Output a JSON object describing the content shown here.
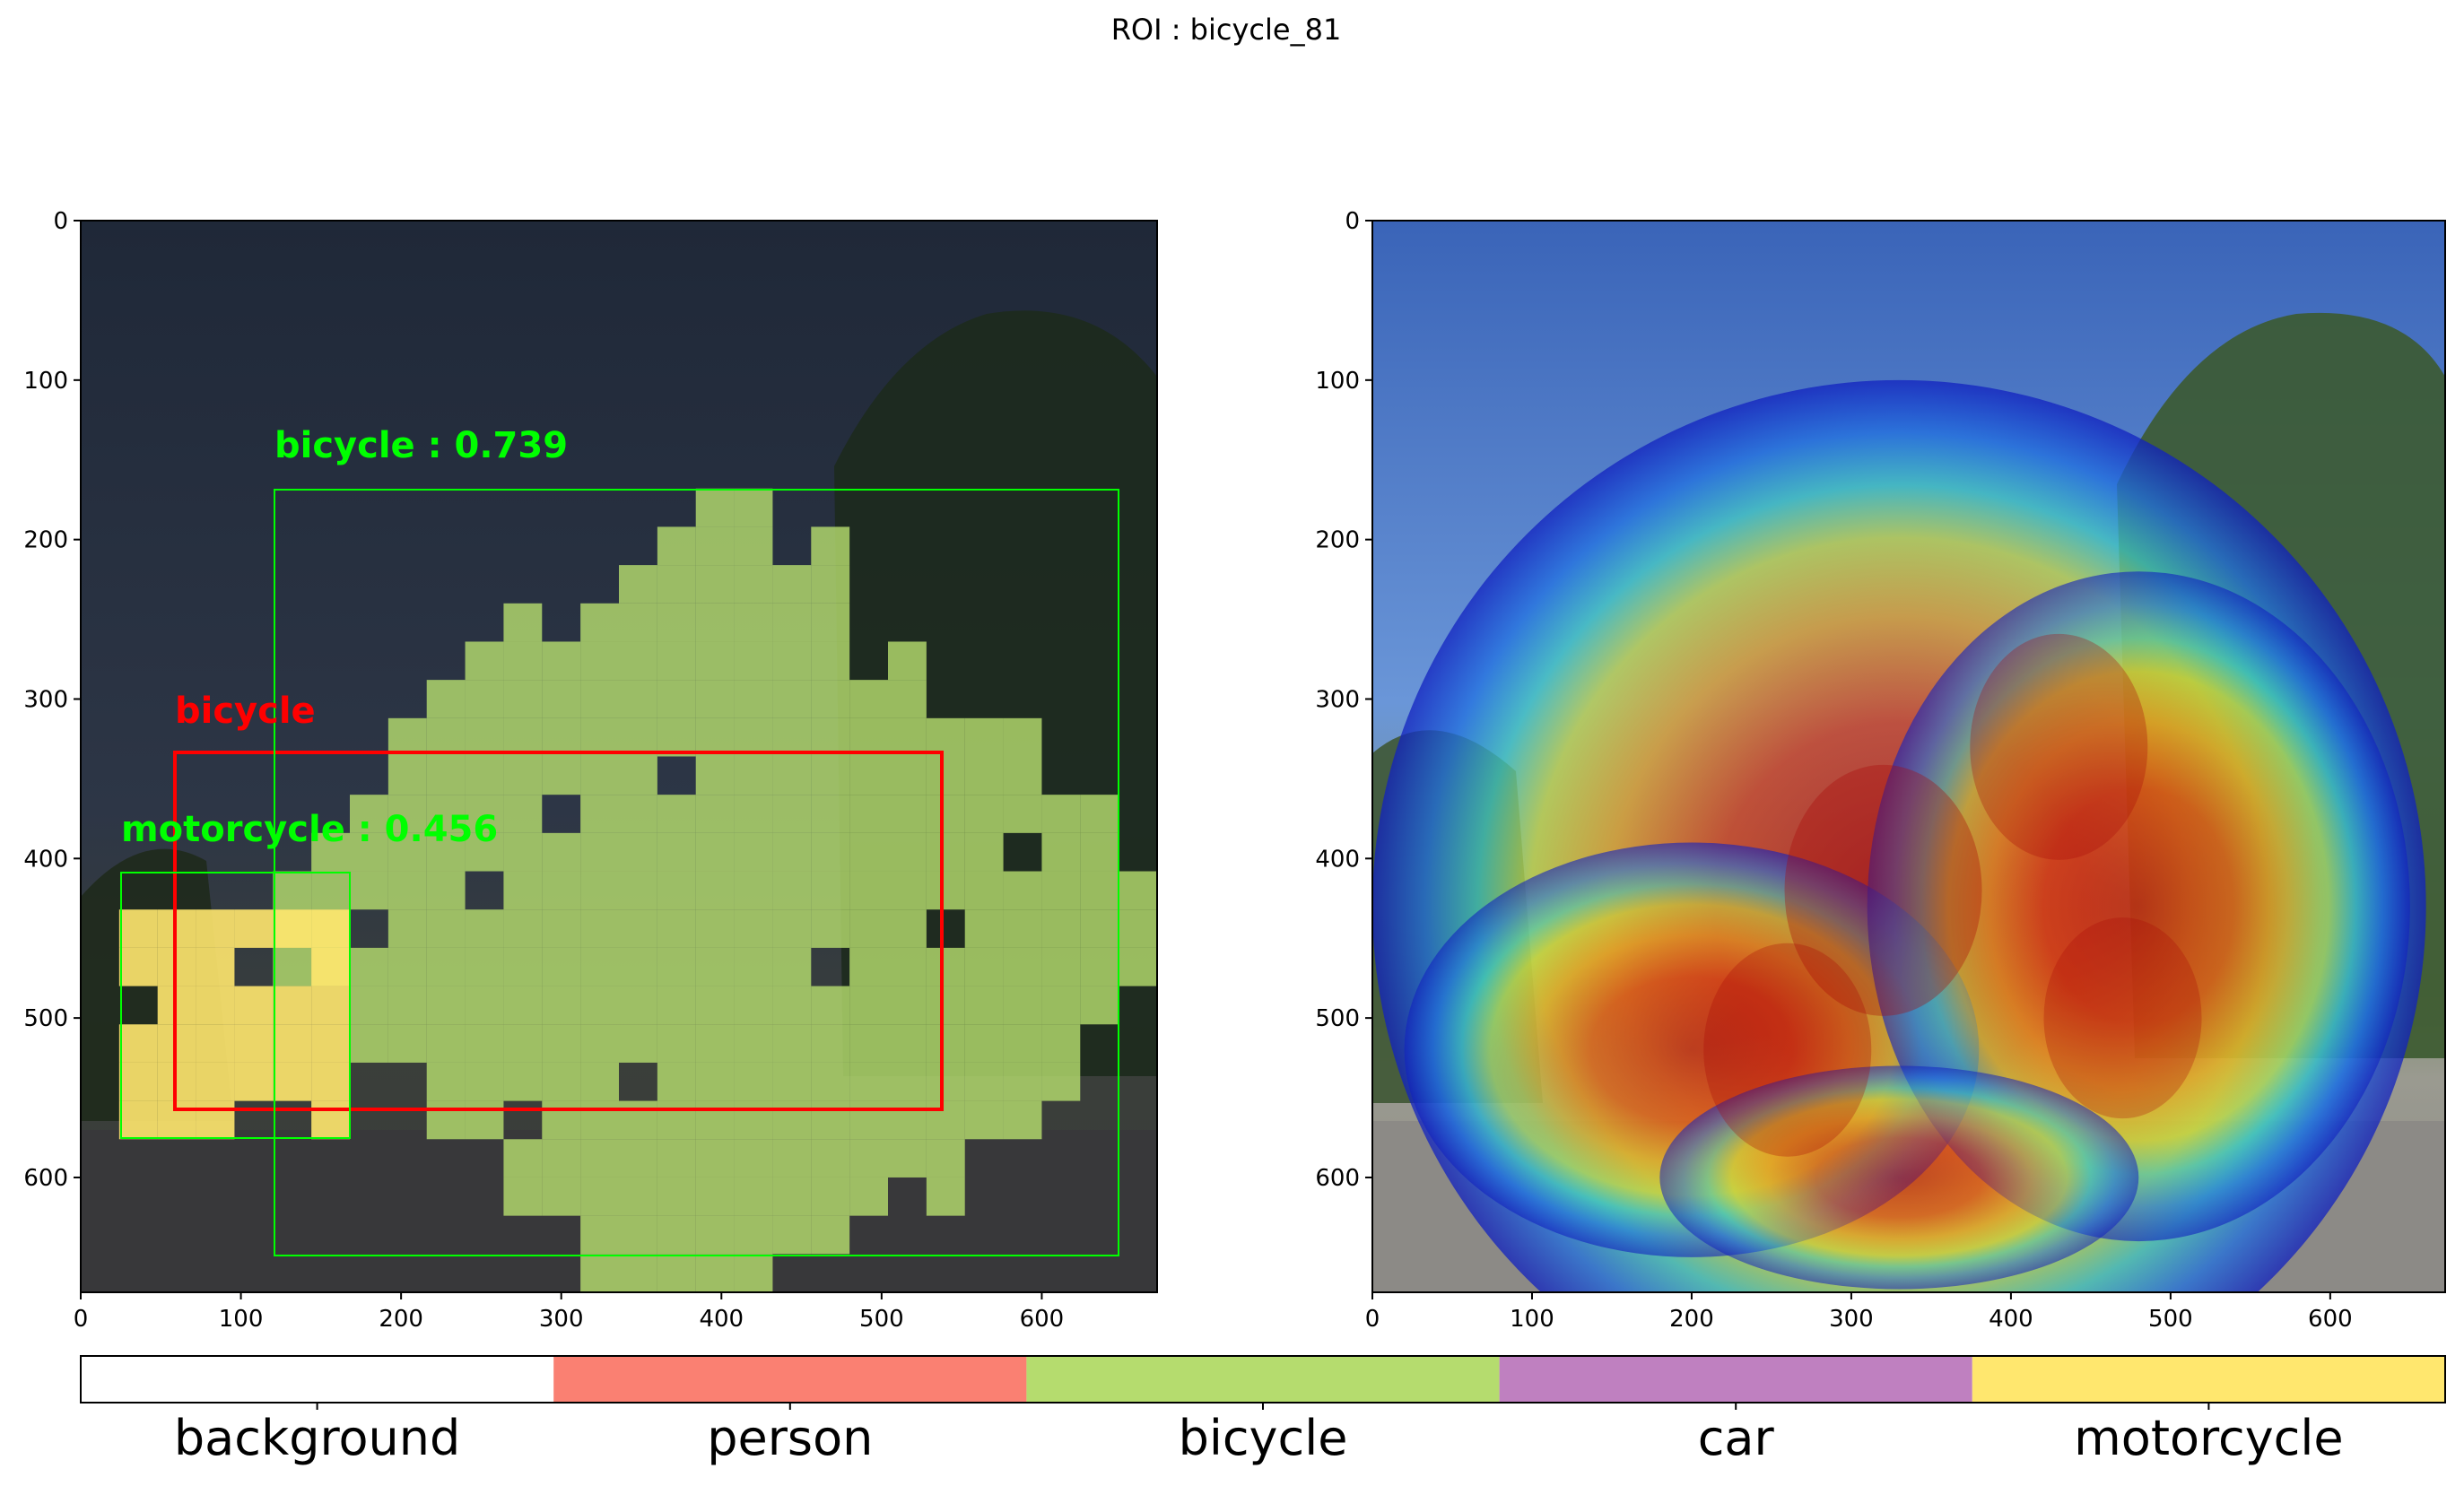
{
  "figure_title": "ROI : bicycle_81",
  "colors": {
    "background_class": "#ffffff",
    "person_class": "#fa8072",
    "bicycle_class": "#b5dc6e",
    "car_class": "#bf80c0",
    "motorcycle_class": "#ffe76e",
    "roi_box": "#ff0000",
    "detection_box": "#00ff00",
    "sky_dark": "#2a3344",
    "ground_dark": "#3a3a3c"
  },
  "chart_data": [
    {
      "type": "image",
      "panel": "left",
      "description_type": "segmentation-overlay",
      "xlim": [
        0,
        672
      ],
      "ylim": [
        672,
        0
      ],
      "x_ticks": [
        0,
        100,
        200,
        300,
        400,
        500,
        600
      ],
      "y_ticks": [
        0,
        100,
        200,
        300,
        400,
        500,
        600
      ],
      "segments": [
        {
          "class": "bicycle",
          "x": [
            120,
            660
          ],
          "y": [
            168,
            672
          ]
        },
        {
          "class": "motorcycle",
          "x": [
            24,
            168
          ],
          "y": [
            408,
            576
          ]
        }
      ],
      "roi_box": {
        "label": "bicycle",
        "x0": 58,
        "y0": 334,
        "x1": 536,
        "y1": 557
      },
      "detections": [
        {
          "label": "bicycle : 0.739",
          "score": 0.739,
          "x0": 120,
          "y0": 168,
          "x1": 647,
          "y1": 647
        },
        {
          "label": "motorcycle : 0.456",
          "score": 0.456,
          "x0": 24,
          "y0": 408,
          "x1": 168,
          "y1": 574
        }
      ]
    },
    {
      "type": "heatmap",
      "panel": "right",
      "description_type": "attention-heatmap-overlay",
      "xlim": [
        0,
        672
      ],
      "ylim": [
        672,
        0
      ],
      "x_ticks": [
        0,
        100,
        200,
        300,
        400,
        500,
        600
      ],
      "y_ticks": [
        0,
        100,
        200,
        300,
        400,
        500,
        600
      ],
      "hot_regions": [
        {
          "x": 320,
          "y": 420,
          "intensity": 1.0
        },
        {
          "x": 430,
          "y": 330,
          "intensity": 0.9
        },
        {
          "x": 260,
          "y": 520,
          "intensity": 0.85
        },
        {
          "x": 470,
          "y": 500,
          "intensity": 0.8
        }
      ],
      "colormap": "jet"
    },
    {
      "type": "legend_colorbar",
      "categories": [
        "background",
        "person",
        "bicycle",
        "car",
        "motorcycle"
      ]
    }
  ]
}
